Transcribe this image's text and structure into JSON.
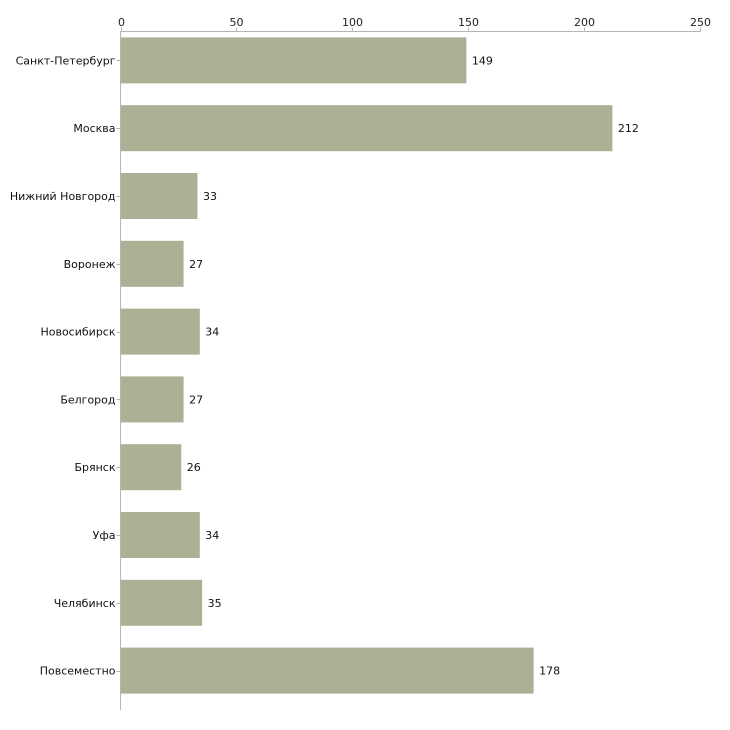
{
  "chart_data": {
    "type": "bar",
    "orientation": "horizontal",
    "title": "",
    "xlabel": "",
    "ylabel": "",
    "xlim": [
      0,
      250
    ],
    "x_ticks": [
      0,
      50,
      100,
      150,
      200,
      250
    ],
    "axis_position": "top",
    "grid": false,
    "legend": "none",
    "bar_color": "#acb196",
    "categories": [
      "Санкт-Петербург",
      "Москва",
      "Нижний Новгород",
      "Воронеж",
      "Новосибирск",
      "Белгород",
      "Брянск",
      "Уфа",
      "Челябинск",
      "Повсеместно"
    ],
    "values": [
      149,
      212,
      33,
      27,
      34,
      27,
      26,
      34,
      35,
      178
    ]
  }
}
